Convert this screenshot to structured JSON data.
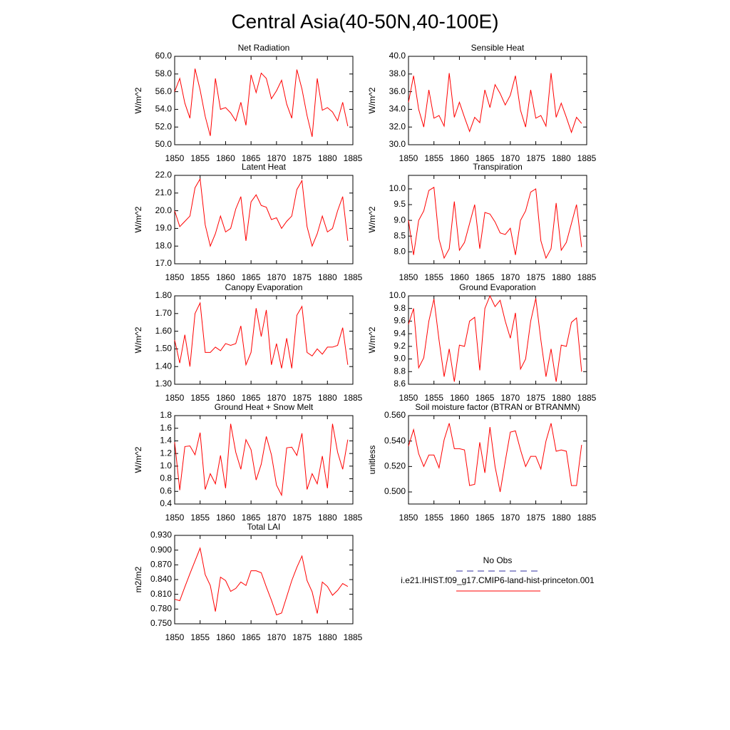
{
  "title": "Central Asia(40-50N,40-100E)",
  "legend": [
    {
      "name": "No Obs",
      "color": "#3030a0",
      "style": "dashed"
    },
    {
      "name": "i.e21.IHIST.f09_g17.CMIP6-land-hist-princeton.001",
      "color": "#ff0000",
      "style": "solid"
    }
  ],
  "chart_data": [
    {
      "type": "line",
      "title": "Net Radiation",
      "ylabel": "W/m^2",
      "x": [
        1850,
        1851,
        1852,
        1853,
        1854,
        1855,
        1856,
        1857,
        1858,
        1859,
        1860,
        1861,
        1862,
        1863,
        1864,
        1865,
        1866,
        1867,
        1868,
        1869,
        1870,
        1871,
        1872,
        1873,
        1874,
        1875,
        1876,
        1877,
        1878,
        1879,
        1880,
        1881,
        1882,
        1883,
        1884
      ],
      "series": [
        {
          "color": "#ff0000",
          "values": [
            56.0,
            57.5,
            54.7,
            53.0,
            58.6,
            56.2,
            53.2,
            51.0,
            57.5,
            54.0,
            54.2,
            53.6,
            52.7,
            54.8,
            52.2,
            57.9,
            55.9,
            58.1,
            57.5,
            55.2,
            56.1,
            57.3,
            54.6,
            53.0,
            58.5,
            56.3,
            53.3,
            50.9,
            57.5,
            53.9,
            54.2,
            53.7,
            52.7,
            54.8,
            52.1
          ]
        }
      ],
      "xlim": [
        1850,
        1885
      ],
      "xticks": [
        1850,
        1855,
        1860,
        1865,
        1870,
        1875,
        1880,
        1885
      ],
      "ylim": [
        50,
        60
      ],
      "yticks": [
        {
          "value": 50,
          "label": "50.0"
        },
        {
          "value": 52,
          "label": "52.0"
        },
        {
          "value": 54,
          "label": "54.0"
        },
        {
          "value": 56,
          "label": "56.0"
        },
        {
          "value": 58,
          "label": "58.0"
        },
        {
          "value": 60,
          "label": "60.0"
        }
      ]
    },
    {
      "type": "line",
      "title": "Sensible Heat",
      "ylabel": "W/m^2",
      "x": [
        1850,
        1851,
        1852,
        1853,
        1854,
        1855,
        1856,
        1857,
        1858,
        1859,
        1860,
        1861,
        1862,
        1863,
        1864,
        1865,
        1866,
        1867,
        1868,
        1869,
        1870,
        1871,
        1872,
        1873,
        1874,
        1875,
        1876,
        1877,
        1878,
        1879,
        1880,
        1881,
        1882,
        1883,
        1884
      ],
      "series": [
        {
          "color": "#ff0000",
          "values": [
            34.8,
            37.8,
            34.0,
            32.0,
            36.2,
            33.0,
            33.3,
            32.1,
            38.1,
            33.1,
            34.8,
            33.1,
            31.5,
            33.1,
            32.5,
            36.2,
            34.2,
            36.8,
            35.8,
            34.5,
            35.6,
            37.8,
            33.9,
            32.0,
            36.2,
            33.0,
            33.3,
            32.1,
            38.1,
            33.1,
            34.7,
            33.1,
            31.4,
            33.1,
            32.4
          ]
        }
      ],
      "xlim": [
        1850,
        1885
      ],
      "xticks": [
        1850,
        1855,
        1860,
        1865,
        1870,
        1875,
        1880,
        1885
      ],
      "ylim": [
        30,
        40
      ],
      "yticks": [
        {
          "value": 30,
          "label": "30.0"
        },
        {
          "value": 32,
          "label": "32.0"
        },
        {
          "value": 34,
          "label": "34.0"
        },
        {
          "value": 36,
          "label": "36.0"
        },
        {
          "value": 38,
          "label": "38.0"
        },
        {
          "value": 40,
          "label": "40.0"
        }
      ]
    },
    {
      "type": "line",
      "title": "Latent Heat",
      "ylabel": "W/m^2",
      "x": [
        1850,
        1851,
        1852,
        1853,
        1854,
        1855,
        1856,
        1857,
        1858,
        1859,
        1860,
        1861,
        1862,
        1863,
        1864,
        1865,
        1866,
        1867,
        1868,
        1869,
        1870,
        1871,
        1872,
        1873,
        1874,
        1875,
        1876,
        1877,
        1878,
        1879,
        1880,
        1881,
        1882,
        1883,
        1884
      ],
      "series": [
        {
          "color": "#ff0000",
          "values": [
            20.0,
            19.1,
            19.4,
            19.7,
            21.3,
            21.8,
            19.2,
            18.0,
            18.7,
            19.7,
            18.8,
            19.0,
            20.1,
            20.8,
            18.3,
            20.5,
            20.9,
            20.3,
            20.2,
            19.5,
            19.6,
            19.0,
            19.4,
            19.7,
            21.2,
            21.7,
            19.1,
            18.0,
            18.7,
            19.7,
            18.8,
            19.0,
            20.0,
            20.8,
            18.3
          ]
        }
      ],
      "xlim": [
        1850,
        1885
      ],
      "xticks": [
        1850,
        1855,
        1860,
        1865,
        1870,
        1875,
        1880,
        1885
      ],
      "ylim": [
        17,
        22
      ],
      "yticks": [
        {
          "value": 17,
          "label": "17.0"
        },
        {
          "value": 18,
          "label": "18.0"
        },
        {
          "value": 19,
          "label": "19.0"
        },
        {
          "value": 20,
          "label": "20.0"
        },
        {
          "value": 21,
          "label": "21.0"
        },
        {
          "value": 22,
          "label": "22.0"
        }
      ]
    },
    {
      "type": "line",
      "title": "Transpiration",
      "ylabel": "W/m^2",
      "x": [
        1850,
        1851,
        1852,
        1853,
        1854,
        1855,
        1856,
        1857,
        1858,
        1859,
        1860,
        1861,
        1862,
        1863,
        1864,
        1865,
        1866,
        1867,
        1868,
        1869,
        1870,
        1871,
        1872,
        1873,
        1874,
        1875,
        1876,
        1877,
        1878,
        1879,
        1880,
        1881,
        1882,
        1883,
        1884
      ],
      "series": [
        {
          "color": "#ff0000",
          "values": [
            9.0,
            7.9,
            9.0,
            9.3,
            9.95,
            10.05,
            8.4,
            7.8,
            8.1,
            9.6,
            8.05,
            8.3,
            8.9,
            9.5,
            8.1,
            9.25,
            9.2,
            8.95,
            8.6,
            8.55,
            8.75,
            7.9,
            9.0,
            9.3,
            9.9,
            10.0,
            8.35,
            7.8,
            8.1,
            9.55,
            8.05,
            8.3,
            8.9,
            9.5,
            8.15
          ]
        }
      ],
      "xlim": [
        1850,
        1885
      ],
      "xticks": [
        1850,
        1855,
        1860,
        1865,
        1870,
        1875,
        1880,
        1885
      ],
      "ylim": [
        7.62,
        10.43
      ],
      "yticks": [
        {
          "value": 8,
          "label": "8.0"
        },
        {
          "value": 8.5,
          "label": "8.5"
        },
        {
          "value": 9,
          "label": "9.0"
        },
        {
          "value": 9.5,
          "label": "9.5"
        },
        {
          "value": 10,
          "label": "10.0"
        }
      ]
    },
    {
      "type": "line",
      "title": "Canopy Evaporation",
      "ylabel": "W/m^2",
      "x": [
        1850,
        1851,
        1852,
        1853,
        1854,
        1855,
        1856,
        1857,
        1858,
        1859,
        1860,
        1861,
        1862,
        1863,
        1864,
        1865,
        1866,
        1867,
        1868,
        1869,
        1870,
        1871,
        1872,
        1873,
        1874,
        1875,
        1876,
        1877,
        1878,
        1879,
        1880,
        1881,
        1882,
        1883,
        1884
      ],
      "series": [
        {
          "color": "#ff0000",
          "values": [
            1.55,
            1.42,
            1.58,
            1.4,
            1.7,
            1.76,
            1.48,
            1.48,
            1.51,
            1.49,
            1.53,
            1.52,
            1.53,
            1.63,
            1.41,
            1.48,
            1.73,
            1.57,
            1.72,
            1.41,
            1.53,
            1.39,
            1.56,
            1.39,
            1.69,
            1.74,
            1.48,
            1.46,
            1.5,
            1.47,
            1.51,
            1.51,
            1.52,
            1.62,
            1.41
          ]
        }
      ],
      "xlim": [
        1850,
        1885
      ],
      "xticks": [
        1850,
        1855,
        1860,
        1865,
        1870,
        1875,
        1880,
        1885
      ],
      "ylim": [
        1.3,
        1.8
      ],
      "yticks": [
        {
          "value": 1.3,
          "label": "1.30"
        },
        {
          "value": 1.4,
          "label": "1.40"
        },
        {
          "value": 1.5,
          "label": "1.50"
        },
        {
          "value": 1.6,
          "label": "1.60"
        },
        {
          "value": 1.7,
          "label": "1.70"
        },
        {
          "value": 1.8,
          "label": "1.80"
        }
      ]
    },
    {
      "type": "line",
      "title": "Ground Evaporation",
      "ylabel": "W/m^2",
      "x": [
        1850,
        1851,
        1852,
        1853,
        1854,
        1855,
        1856,
        1857,
        1858,
        1859,
        1860,
        1861,
        1862,
        1863,
        1864,
        1865,
        1866,
        1867,
        1868,
        1869,
        1870,
        1871,
        1872,
        1873,
        1874,
        1875,
        1876,
        1877,
        1878,
        1879,
        1880,
        1881,
        1882,
        1883,
        1884
      ],
      "series": [
        {
          "color": "#ff0000",
          "values": [
            9.55,
            9.8,
            8.86,
            9.02,
            9.6,
            9.95,
            9.3,
            8.72,
            9.16,
            8.64,
            9.22,
            9.2,
            9.6,
            9.66,
            8.82,
            9.8,
            10.0,
            9.83,
            9.93,
            9.6,
            9.33,
            9.73,
            8.84,
            9.0,
            9.6,
            9.96,
            9.3,
            8.72,
            9.16,
            8.64,
            9.22,
            9.2,
            9.58,
            9.65,
            8.8
          ]
        }
      ],
      "xlim": [
        1850,
        1885
      ],
      "xticks": [
        1850,
        1855,
        1860,
        1865,
        1870,
        1875,
        1880,
        1885
      ],
      "ylim": [
        8.6,
        10.0
      ],
      "yticks": [
        {
          "value": 8.6,
          "label": "8.6"
        },
        {
          "value": 8.8,
          "label": "8.8"
        },
        {
          "value": 9,
          "label": "9.0"
        },
        {
          "value": 9.2,
          "label": "9.2"
        },
        {
          "value": 9.4,
          "label": "9.4"
        },
        {
          "value": 9.6,
          "label": "9.6"
        },
        {
          "value": 9.8,
          "label": "9.8"
        },
        {
          "value": 10,
          "label": "10.0"
        }
      ]
    },
    {
      "type": "line",
      "title": "Ground Heat + Snow Melt",
      "ylabel": "W/m^2",
      "x": [
        1850,
        1851,
        1852,
        1853,
        1854,
        1855,
        1856,
        1857,
        1858,
        1859,
        1860,
        1861,
        1862,
        1863,
        1864,
        1865,
        1866,
        1867,
        1868,
        1869,
        1870,
        1871,
        1872,
        1873,
        1874,
        1875,
        1876,
        1877,
        1878,
        1879,
        1880,
        1881,
        1882,
        1883,
        1884
      ],
      "series": [
        {
          "color": "#ff0000",
          "values": [
            1.38,
            0.62,
            1.31,
            1.32,
            1.18,
            1.53,
            0.63,
            0.88,
            0.72,
            1.17,
            0.65,
            1.67,
            1.22,
            0.95,
            1.42,
            1.26,
            0.78,
            1.03,
            1.47,
            1.18,
            0.7,
            0.54,
            1.29,
            1.3,
            1.17,
            1.52,
            0.63,
            0.88,
            0.72,
            1.16,
            0.65,
            1.67,
            1.22,
            0.95,
            1.42
          ]
        }
      ],
      "xlim": [
        1850,
        1885
      ],
      "xticks": [
        1850,
        1855,
        1860,
        1865,
        1870,
        1875,
        1880,
        1885
      ],
      "ylim": [
        0.4,
        1.8
      ],
      "yticks": [
        0.4,
        0.6,
        0.8,
        {
          "value": 1,
          "label": "1.0"
        },
        1.2,
        1.4,
        1.6,
        1.8
      ]
    },
    {
      "type": "line",
      "title": "Soil moisture factor (BTRAN or BTRANMN)",
      "ylabel": "unitless",
      "x": [
        1850,
        1851,
        1852,
        1853,
        1854,
        1855,
        1856,
        1857,
        1858,
        1859,
        1860,
        1861,
        1862,
        1863,
        1864,
        1865,
        1866,
        1867,
        1868,
        1869,
        1870,
        1871,
        1872,
        1873,
        1874,
        1875,
        1876,
        1877,
        1878,
        1879,
        1880,
        1881,
        1882,
        1883,
        1884
      ],
      "series": [
        {
          "color": "#ff0000",
          "values": [
            0.536,
            0.549,
            0.53,
            0.52,
            0.529,
            0.529,
            0.519,
            0.541,
            0.554,
            0.534,
            0.534,
            0.533,
            0.505,
            0.506,
            0.539,
            0.515,
            0.551,
            0.52,
            0.5,
            0.524,
            0.547,
            0.548,
            0.533,
            0.52,
            0.528,
            0.528,
            0.518,
            0.54,
            0.554,
            0.532,
            0.533,
            0.532,
            0.505,
            0.505,
            0.537
          ]
        }
      ],
      "xlim": [
        1850,
        1885
      ],
      "xticks": [
        1850,
        1855,
        1860,
        1865,
        1870,
        1875,
        1880,
        1885
      ],
      "ylim": [
        0.4905,
        0.56
      ],
      "yticks": [
        {
          "value": 0.5,
          "label": "0.500"
        },
        {
          "value": 0.52,
          "label": "0.520"
        },
        {
          "value": 0.54,
          "label": "0.540"
        },
        {
          "value": 0.56,
          "label": "0.560"
        }
      ]
    },
    {
      "type": "line",
      "title": "Total LAI",
      "ylabel": "m2/m2",
      "x": [
        1850,
        1851,
        1852,
        1853,
        1854,
        1855,
        1856,
        1857,
        1858,
        1859,
        1860,
        1861,
        1862,
        1863,
        1864,
        1865,
        1866,
        1867,
        1868,
        1869,
        1870,
        1871,
        1872,
        1873,
        1874,
        1875,
        1876,
        1877,
        1878,
        1879,
        1880,
        1881,
        1882,
        1883,
        1884
      ],
      "series": [
        {
          "color": "#ff0000",
          "values": [
            0.8,
            0.797,
            0.825,
            0.852,
            0.878,
            0.904,
            0.85,
            0.828,
            0.775,
            0.845,
            0.838,
            0.816,
            0.822,
            0.835,
            0.828,
            0.858,
            0.858,
            0.854,
            0.825,
            0.798,
            0.768,
            0.772,
            0.805,
            0.838,
            0.865,
            0.888,
            0.838,
            0.815,
            0.771,
            0.835,
            0.826,
            0.808,
            0.818,
            0.832,
            0.826
          ]
        }
      ],
      "xlim": [
        1850,
        1885
      ],
      "xticks": [
        1850,
        1855,
        1860,
        1865,
        1870,
        1875,
        1880,
        1885
      ],
      "ylim": [
        0.75,
        0.93
      ],
      "yticks": [
        {
          "value": 0.75,
          "label": "0.750"
        },
        {
          "value": 0.78,
          "label": "0.780"
        },
        {
          "value": 0.81,
          "label": "0.810"
        },
        {
          "value": 0.84,
          "label": "0.840"
        },
        {
          "value": 0.87,
          "label": "0.870"
        },
        {
          "value": 0.9,
          "label": "0.900"
        },
        {
          "value": 0.93,
          "label": "0.930"
        }
      ]
    }
  ]
}
